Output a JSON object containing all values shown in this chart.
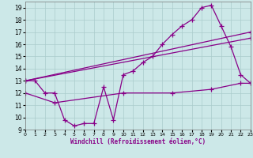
{
  "background_color": "#cce8e8",
  "grid_color": "#aacccc",
  "line_color": "#880088",
  "marker": "+",
  "markersize": 4,
  "linewidth": 0.9,
  "xlim": [
    0,
    23
  ],
  "ylim": [
    9,
    19.5
  ],
  "xticks": [
    0,
    1,
    2,
    3,
    4,
    5,
    6,
    7,
    8,
    9,
    10,
    11,
    12,
    13,
    14,
    15,
    16,
    17,
    18,
    19,
    20,
    21,
    22,
    23
  ],
  "yticks": [
    9,
    10,
    11,
    12,
    13,
    14,
    15,
    16,
    17,
    18,
    19
  ],
  "xlabel": "Windchill (Refroidissement éolien,°C)",
  "curves": [
    {
      "x": [
        0,
        1,
        2,
        3,
        4,
        5,
        6,
        7,
        8,
        9,
        10,
        11,
        12,
        13,
        14,
        15,
        16,
        17,
        18,
        19,
        20,
        21,
        22,
        23
      ],
      "y": [
        13,
        13,
        12,
        12,
        9.8,
        9.3,
        9.5,
        9.5,
        12.5,
        9.8,
        13.5,
        13.8,
        14.5,
        15.0,
        16.0,
        16.8,
        17.5,
        18.0,
        19.0,
        19.2,
        17.5,
        15.8,
        13.5,
        12.8
      ]
    },
    {
      "x": [
        0,
        23
      ],
      "y": [
        13,
        17
      ]
    },
    {
      "x": [
        0,
        23
      ],
      "y": [
        13,
        16.5
      ]
    },
    {
      "x": [
        0,
        3,
        10,
        15,
        19,
        22,
        23
      ],
      "y": [
        12,
        11.2,
        12,
        12,
        12.3,
        12.8,
        12.8
      ]
    }
  ]
}
